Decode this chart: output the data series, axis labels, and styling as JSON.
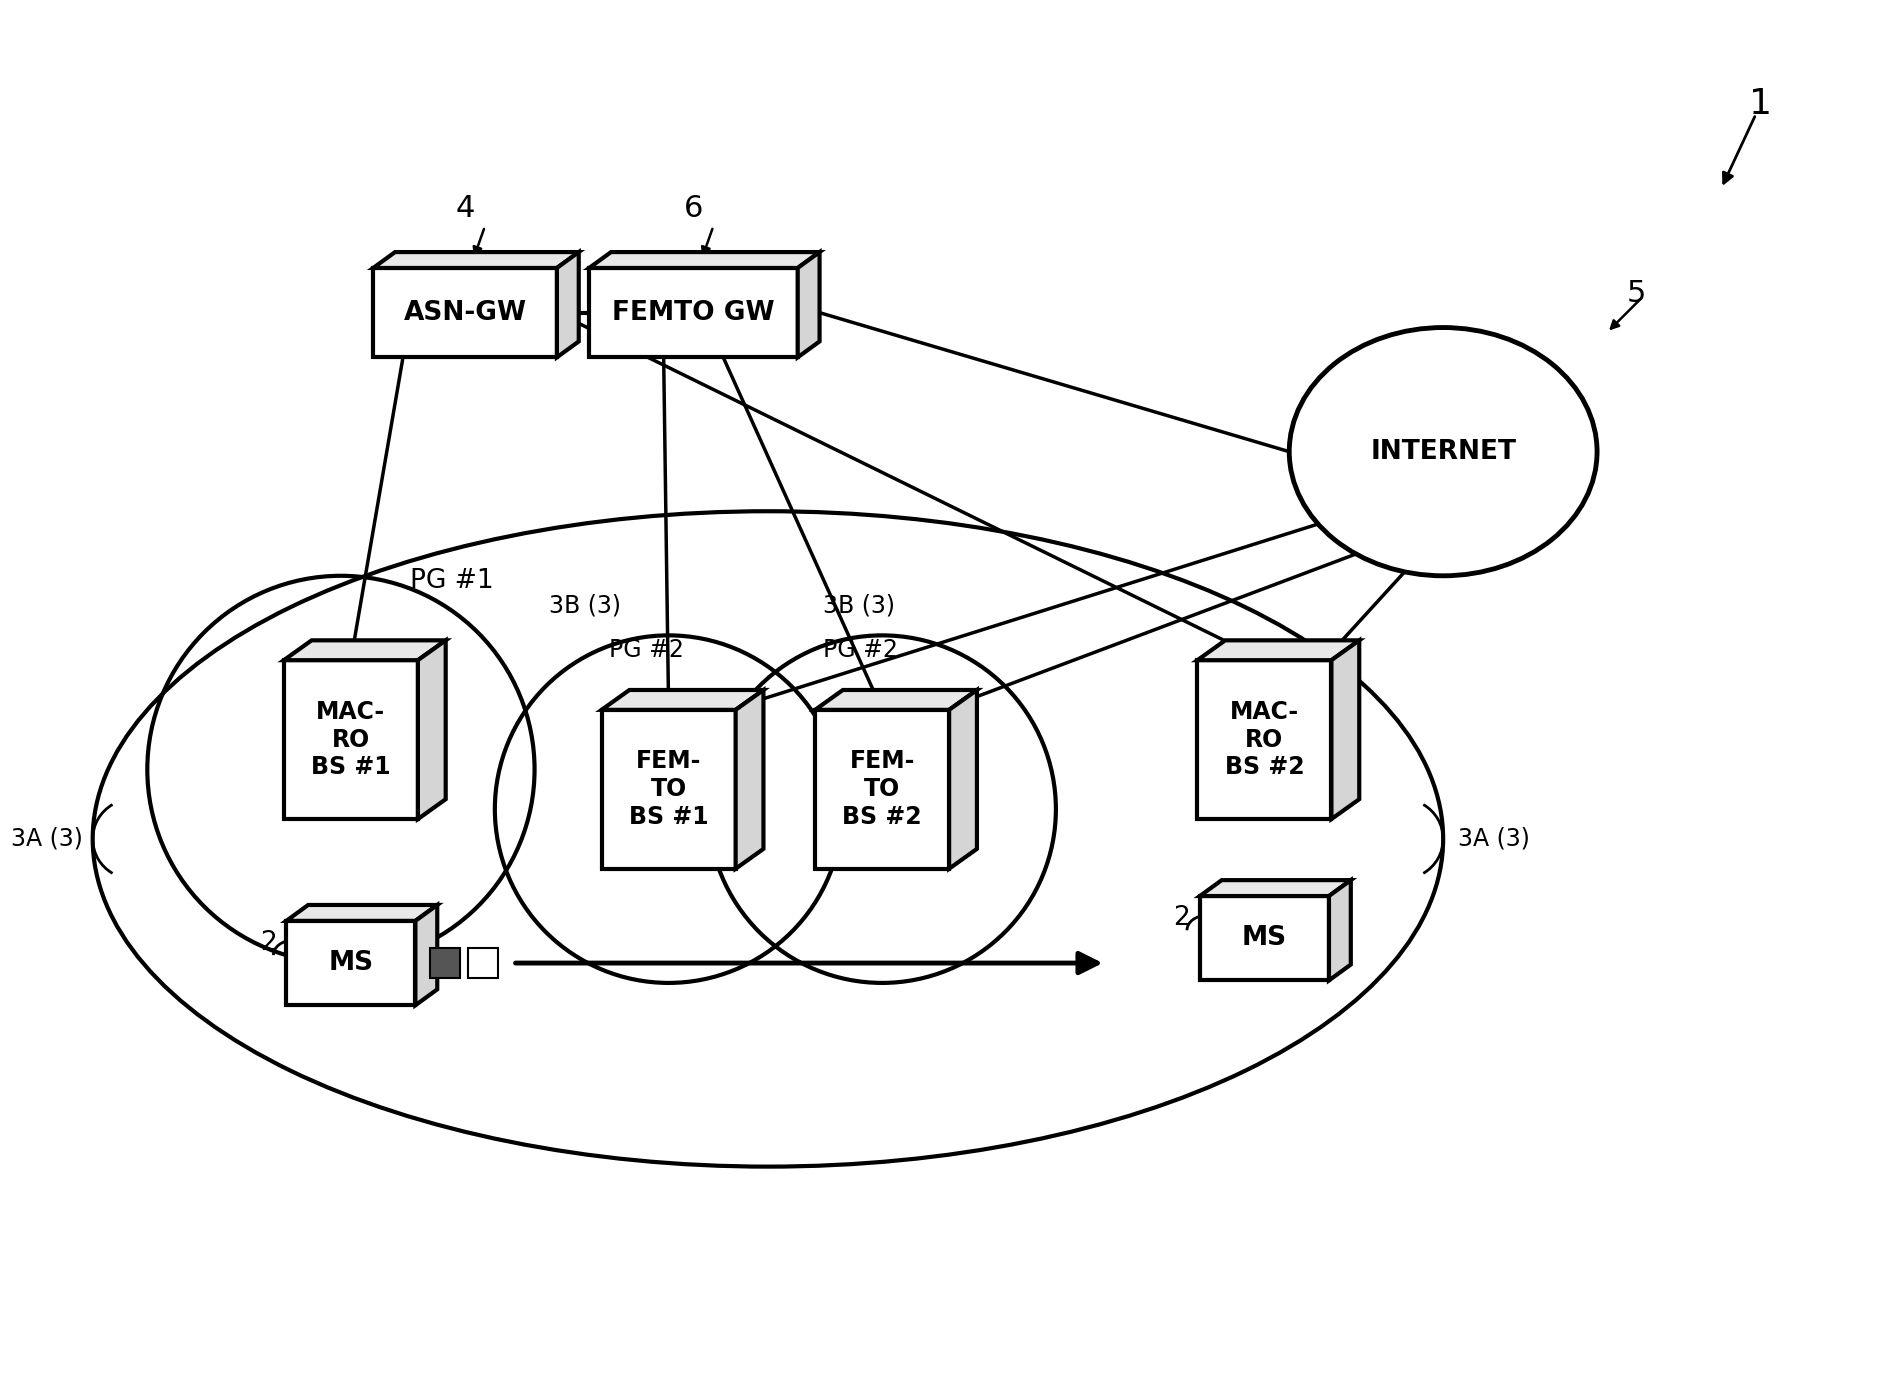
{
  "bg_color": "#ffffff",
  "line_color": "#000000",
  "fig_width": 18.9,
  "fig_height": 13.75,
  "dpi": 100,
  "label_1": "1",
  "label_4": "4",
  "label_6": "6",
  "label_5": "5",
  "pg1_label": "PG #1",
  "pg2_label1": "PG #2",
  "pg2_label2": "PG #2",
  "label_3A_left": "3A (3)",
  "label_3A_right": "3A (3)",
  "label_3B_left": "3B (3)",
  "label_3B_right": "3B (3)",
  "label_2": "2",
  "text_asn": "ASN-GW",
  "text_femto": "FEMTO GW",
  "text_internet": "INTERNET",
  "text_macro1": [
    "MAC-",
    "RO",
    "BS #1"
  ],
  "text_femto1": [
    "FEM-",
    "TO",
    "BS #1"
  ],
  "text_femto2": [
    "FEM-",
    "TO",
    "BS #2"
  ],
  "text_macro2": [
    "MAC-",
    "RO",
    "BS #2"
  ],
  "text_ms": "MS"
}
